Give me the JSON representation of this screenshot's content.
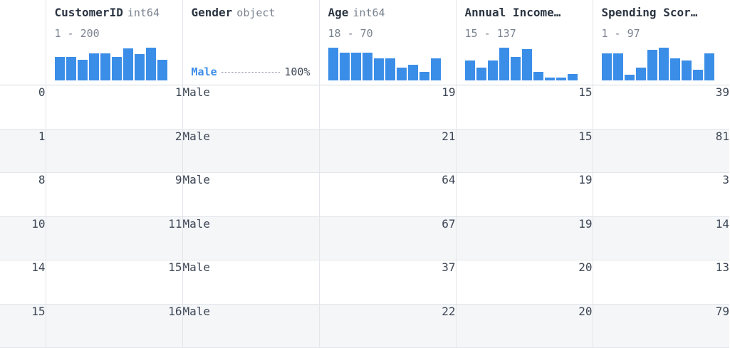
{
  "columns": [
    {
      "name": "CustomerID",
      "dtype": "int64",
      "range": "1 - 200",
      "hist": [
        0.72,
        0.72,
        0.64,
        0.82,
        0.82,
        0.72,
        0.98,
        0.8,
        1.0,
        0.62
      ]
    },
    {
      "name": "Gender",
      "dtype": "object",
      "top_value": "Male",
      "top_pct": "100%"
    },
    {
      "name": "Age",
      "dtype": "int64",
      "range": "18 - 70",
      "hist": [
        1.0,
        0.84,
        0.84,
        0.84,
        0.68,
        0.68,
        0.4,
        0.48,
        0.25,
        0.68
      ]
    },
    {
      "name": "Annual Income…",
      "dtype": "",
      "range": "15 - 137",
      "hist": [
        0.6,
        0.4,
        0.6,
        1.0,
        0.72,
        0.96,
        0.25,
        0.08,
        0.08,
        0.2
      ]
    },
    {
      "name": "Spending Scor…",
      "dtype": "",
      "range": "1 - 97",
      "hist": [
        0.82,
        0.82,
        0.18,
        0.4,
        0.94,
        1.0,
        0.68,
        0.6,
        0.32,
        0.82
      ]
    }
  ],
  "rows": [
    {
      "index": "0",
      "cells": [
        "1",
        "Male",
        "19",
        "15",
        "39"
      ]
    },
    {
      "index": "1",
      "cells": [
        "2",
        "Male",
        "21",
        "15",
        "81"
      ]
    },
    {
      "index": "8",
      "cells": [
        "9",
        "Male",
        "64",
        "19",
        "3"
      ]
    },
    {
      "index": "10",
      "cells": [
        "11",
        "Male",
        "67",
        "19",
        "14"
      ]
    },
    {
      "index": "14",
      "cells": [
        "15",
        "Male",
        "37",
        "20",
        "13"
      ]
    },
    {
      "index": "15",
      "cells": [
        "16",
        "Male",
        "22",
        "20",
        "79"
      ]
    }
  ],
  "colors": {
    "accent": "#3b8ee8",
    "row_alt": "#f5f6f8",
    "border": "#e2e5ea"
  }
}
